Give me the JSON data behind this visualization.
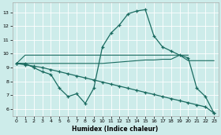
{
  "xlabel": "Humidex (Indice chaleur)",
  "bg_color": "#cdecea",
  "grid_color": "#ffffff",
  "line_color": "#1a6b60",
  "xlim": [
    -0.5,
    23.5
  ],
  "ylim": [
    5.5,
    13.7
  ],
  "yticks": [
    6,
    7,
    8,
    9,
    10,
    11,
    12,
    13
  ],
  "xticks": [
    0,
    1,
    2,
    3,
    4,
    5,
    6,
    7,
    8,
    9,
    10,
    11,
    12,
    13,
    14,
    15,
    16,
    17,
    18,
    19,
    20,
    21,
    22,
    23
  ],
  "line_top_x": [
    0,
    1,
    2,
    3,
    4,
    5,
    6,
    7,
    8,
    9,
    10,
    11,
    12,
    13,
    14,
    15,
    16,
    17,
    18,
    19,
    20
  ],
  "line_top_y": [
    9.3,
    9.9,
    9.9,
    9.9,
    9.9,
    9.9,
    9.9,
    9.9,
    9.9,
    9.9,
    9.9,
    9.9,
    9.9,
    9.9,
    9.9,
    9.9,
    9.9,
    9.9,
    9.9,
    9.9,
    9.9
  ],
  "line_mid_x": [
    0,
    1,
    2,
    3,
    4,
    5,
    6,
    7,
    8,
    9,
    10,
    11,
    12,
    13,
    14,
    15,
    16,
    17,
    18,
    19,
    20,
    21,
    22,
    23
  ],
  "line_mid_y": [
    9.3,
    9.3,
    9.3,
    9.3,
    9.3,
    9.3,
    9.3,
    9.3,
    9.3,
    9.3,
    9.3,
    9.35,
    9.4,
    9.45,
    9.5,
    9.55,
    9.55,
    9.6,
    9.6,
    9.9,
    9.5,
    9.5,
    9.5,
    9.5
  ],
  "line_peak_x": [
    0,
    1,
    2,
    3,
    4,
    5,
    6,
    7,
    8,
    9,
    10,
    11,
    12,
    13,
    14,
    15,
    16,
    17,
    18,
    19,
    20,
    21,
    22,
    23
  ],
  "line_peak_y": [
    9.3,
    9.3,
    9.0,
    8.7,
    8.5,
    7.5,
    6.9,
    7.1,
    6.4,
    7.5,
    10.5,
    11.5,
    12.1,
    12.9,
    13.1,
    13.2,
    11.3,
    10.5,
    10.2,
    9.9,
    9.7,
    7.5,
    6.9,
    5.7
  ],
  "line_diag_x": [
    0,
    1,
    2,
    3,
    4,
    5,
    6,
    7,
    8,
    9,
    10,
    11,
    12,
    13,
    14,
    15,
    16,
    17,
    18,
    19,
    20,
    21,
    22,
    23
  ],
  "line_diag_y": [
    9.3,
    9.2,
    9.1,
    9.0,
    8.85,
    8.7,
    8.55,
    8.4,
    8.25,
    8.1,
    7.95,
    7.8,
    7.65,
    7.5,
    7.35,
    7.2,
    7.05,
    6.9,
    6.75,
    6.6,
    6.45,
    6.3,
    6.15,
    5.7
  ]
}
